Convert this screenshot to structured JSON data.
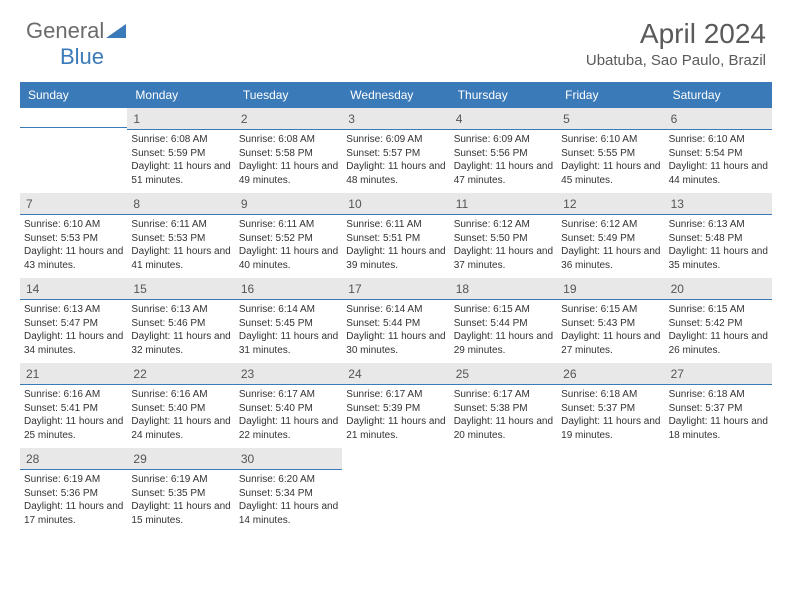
{
  "logo": {
    "word1": "General",
    "word2": "Blue"
  },
  "title": "April 2024",
  "subtitle": "Ubatuba, Sao Paulo, Brazil",
  "colors": {
    "brand_blue": "#3b7ab8",
    "header_gray": "#6b6b6b",
    "daynum_bg": "#e8e8e8",
    "text": "#333333",
    "background": "#ffffff"
  },
  "typography": {
    "title_fontsize": 28,
    "subtitle_fontsize": 15,
    "weekhead_fontsize": 12,
    "daynum_fontsize": 12,
    "info_fontsize": 10
  },
  "weekdays": [
    "Sunday",
    "Monday",
    "Tuesday",
    "Wednesday",
    "Thursday",
    "Friday",
    "Saturday"
  ],
  "layout": {
    "start_offset": 1,
    "days_in_month": 30,
    "rows": 5,
    "cols": 7
  },
  "days": [
    {
      "n": 1,
      "sunrise": "6:08 AM",
      "sunset": "5:59 PM",
      "dl": "11 hours and 51 minutes."
    },
    {
      "n": 2,
      "sunrise": "6:08 AM",
      "sunset": "5:58 PM",
      "dl": "11 hours and 49 minutes."
    },
    {
      "n": 3,
      "sunrise": "6:09 AM",
      "sunset": "5:57 PM",
      "dl": "11 hours and 48 minutes."
    },
    {
      "n": 4,
      "sunrise": "6:09 AM",
      "sunset": "5:56 PM",
      "dl": "11 hours and 47 minutes."
    },
    {
      "n": 5,
      "sunrise": "6:10 AM",
      "sunset": "5:55 PM",
      "dl": "11 hours and 45 minutes."
    },
    {
      "n": 6,
      "sunrise": "6:10 AM",
      "sunset": "5:54 PM",
      "dl": "11 hours and 44 minutes."
    },
    {
      "n": 7,
      "sunrise": "6:10 AM",
      "sunset": "5:53 PM",
      "dl": "11 hours and 43 minutes."
    },
    {
      "n": 8,
      "sunrise": "6:11 AM",
      "sunset": "5:53 PM",
      "dl": "11 hours and 41 minutes."
    },
    {
      "n": 9,
      "sunrise": "6:11 AM",
      "sunset": "5:52 PM",
      "dl": "11 hours and 40 minutes."
    },
    {
      "n": 10,
      "sunrise": "6:11 AM",
      "sunset": "5:51 PM",
      "dl": "11 hours and 39 minutes."
    },
    {
      "n": 11,
      "sunrise": "6:12 AM",
      "sunset": "5:50 PM",
      "dl": "11 hours and 37 minutes."
    },
    {
      "n": 12,
      "sunrise": "6:12 AM",
      "sunset": "5:49 PM",
      "dl": "11 hours and 36 minutes."
    },
    {
      "n": 13,
      "sunrise": "6:13 AM",
      "sunset": "5:48 PM",
      "dl": "11 hours and 35 minutes."
    },
    {
      "n": 14,
      "sunrise": "6:13 AM",
      "sunset": "5:47 PM",
      "dl": "11 hours and 34 minutes."
    },
    {
      "n": 15,
      "sunrise": "6:13 AM",
      "sunset": "5:46 PM",
      "dl": "11 hours and 32 minutes."
    },
    {
      "n": 16,
      "sunrise": "6:14 AM",
      "sunset": "5:45 PM",
      "dl": "11 hours and 31 minutes."
    },
    {
      "n": 17,
      "sunrise": "6:14 AM",
      "sunset": "5:44 PM",
      "dl": "11 hours and 30 minutes."
    },
    {
      "n": 18,
      "sunrise": "6:15 AM",
      "sunset": "5:44 PM",
      "dl": "11 hours and 29 minutes."
    },
    {
      "n": 19,
      "sunrise": "6:15 AM",
      "sunset": "5:43 PM",
      "dl": "11 hours and 27 minutes."
    },
    {
      "n": 20,
      "sunrise": "6:15 AM",
      "sunset": "5:42 PM",
      "dl": "11 hours and 26 minutes."
    },
    {
      "n": 21,
      "sunrise": "6:16 AM",
      "sunset": "5:41 PM",
      "dl": "11 hours and 25 minutes."
    },
    {
      "n": 22,
      "sunrise": "6:16 AM",
      "sunset": "5:40 PM",
      "dl": "11 hours and 24 minutes."
    },
    {
      "n": 23,
      "sunrise": "6:17 AM",
      "sunset": "5:40 PM",
      "dl": "11 hours and 22 minutes."
    },
    {
      "n": 24,
      "sunrise": "6:17 AM",
      "sunset": "5:39 PM",
      "dl": "11 hours and 21 minutes."
    },
    {
      "n": 25,
      "sunrise": "6:17 AM",
      "sunset": "5:38 PM",
      "dl": "11 hours and 20 minutes."
    },
    {
      "n": 26,
      "sunrise": "6:18 AM",
      "sunset": "5:37 PM",
      "dl": "11 hours and 19 minutes."
    },
    {
      "n": 27,
      "sunrise": "6:18 AM",
      "sunset": "5:37 PM",
      "dl": "11 hours and 18 minutes."
    },
    {
      "n": 28,
      "sunrise": "6:19 AM",
      "sunset": "5:36 PM",
      "dl": "11 hours and 17 minutes."
    },
    {
      "n": 29,
      "sunrise": "6:19 AM",
      "sunset": "5:35 PM",
      "dl": "11 hours and 15 minutes."
    },
    {
      "n": 30,
      "sunrise": "6:20 AM",
      "sunset": "5:34 PM",
      "dl": "11 hours and 14 minutes."
    }
  ],
  "labels": {
    "sunrise": "Sunrise:",
    "sunset": "Sunset:",
    "daylight": "Daylight:"
  }
}
